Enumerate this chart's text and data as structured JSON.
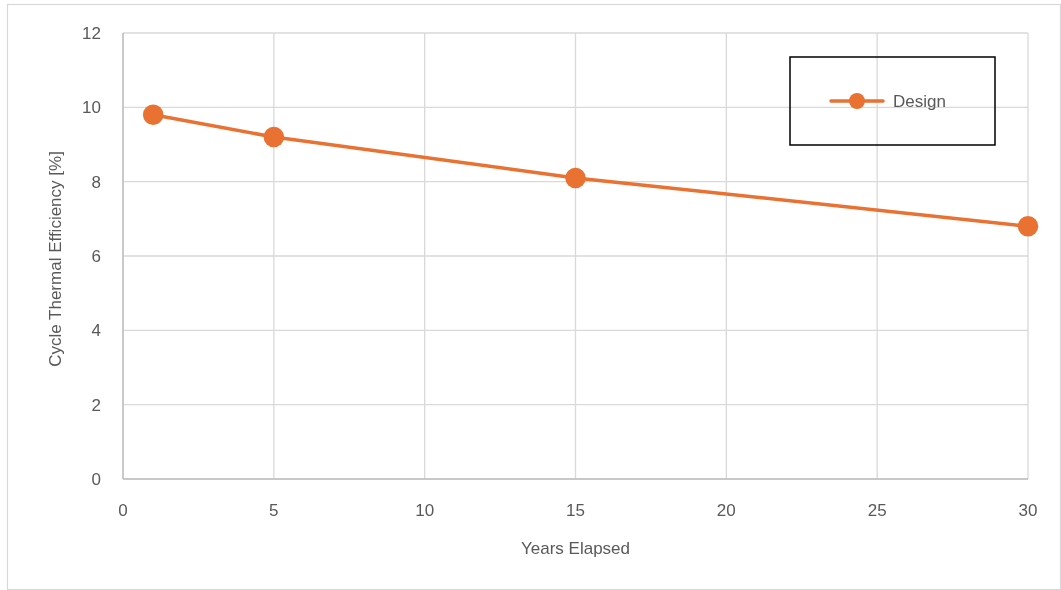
{
  "chart_data": {
    "type": "line",
    "xlabel": "Years Elapsed",
    "ylabel": "Cycle Thermal Efficiency [%]",
    "x": [
      1,
      5,
      15,
      30
    ],
    "series": [
      {
        "name": "Design",
        "color": "#e97132",
        "values": [
          9.8,
          9.2,
          8.1,
          6.8
        ]
      }
    ],
    "xlim": [
      0,
      30
    ],
    "xticks": [
      0,
      5,
      10,
      15,
      20,
      25,
      30
    ],
    "ylim": [
      0,
      12
    ],
    "yticks": [
      0,
      2,
      4,
      6,
      8,
      10,
      12
    ],
    "grid": true,
    "legend": "top right",
    "marker": "circle",
    "line_style": "solid"
  }
}
